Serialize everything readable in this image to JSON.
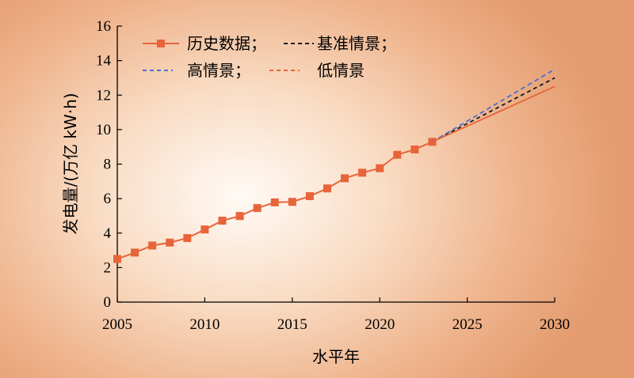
{
  "chart_data": {
    "type": "line",
    "xlabel": "水平年",
    "ylabel": "发电量/(万亿 kW·h)",
    "xlim": [
      2005,
      2030
    ],
    "ylim": [
      0,
      16
    ],
    "x_ticks": [
      2005,
      2010,
      2015,
      2020,
      2025,
      2030
    ],
    "y_ticks": [
      0,
      2,
      4,
      6,
      8,
      10,
      12,
      14,
      16
    ],
    "grid": false,
    "legend_position": "top-left",
    "series": [
      {
        "name": "历史数据；",
        "style": "solid-square-markers",
        "color": "#e8643a",
        "x": [
          2005,
          2006,
          2007,
          2008,
          2009,
          2010,
          2011,
          2012,
          2013,
          2014,
          2015,
          2016,
          2017,
          2018,
          2019,
          2020,
          2021,
          2022,
          2023
        ],
        "y": [
          2.5,
          2.87,
          3.28,
          3.45,
          3.71,
          4.21,
          4.72,
          4.99,
          5.45,
          5.78,
          5.81,
          6.14,
          6.59,
          7.18,
          7.5,
          7.76,
          8.54,
          8.85,
          9.29
        ]
      },
      {
        "name": "基准情景；",
        "style": "dashed",
        "color": "#1a1a1a",
        "x": [
          2023,
          2030
        ],
        "y": [
          9.29,
          13.0
        ]
      },
      {
        "name": "高情景；",
        "style": "dashed",
        "color": "#4a6fd0",
        "x": [
          2023,
          2030
        ],
        "y": [
          9.29,
          13.5
        ]
      },
      {
        "name": "低情景",
        "style": "dashed",
        "color": "#e8643a",
        "x": [
          2023,
          2030
        ],
        "y": [
          9.29,
          12.5
        ]
      }
    ]
  }
}
